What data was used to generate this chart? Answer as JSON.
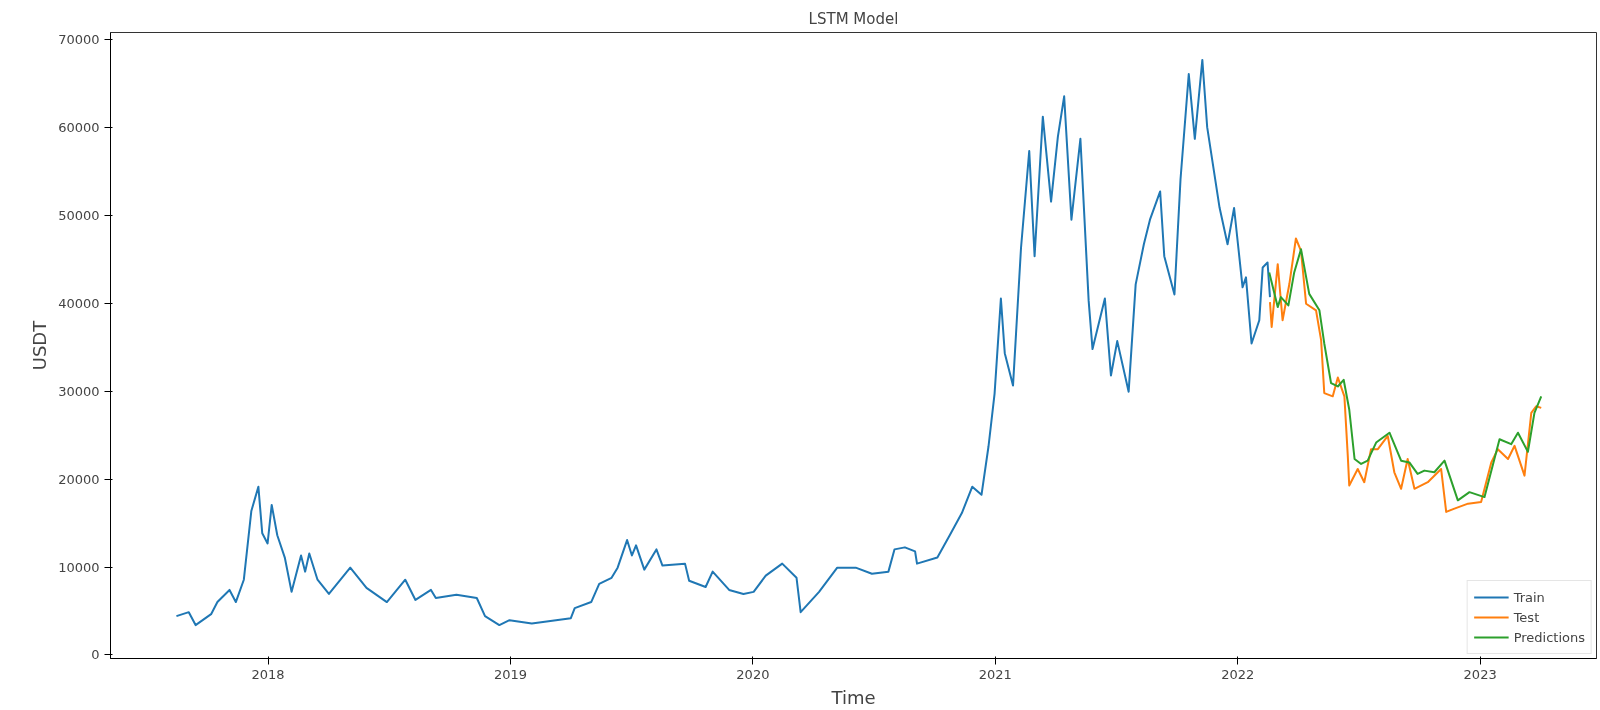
{
  "chart_data": {
    "type": "line",
    "title": "LSTM Model",
    "xlabel": "Time",
    "ylabel": "USDT",
    "xlim": [
      2017.35,
      2023.48
    ],
    "ylim": [
      -400,
      70800
    ],
    "xticks": [
      2018,
      2019,
      2020,
      2021,
      2022,
      2023
    ],
    "yticks": [
      0,
      10000,
      20000,
      30000,
      40000,
      50000,
      60000,
      70000
    ],
    "grid": false,
    "legend": "bottom right",
    "line_style": "solid",
    "marker": "none",
    "series": [
      {
        "name": "Train",
        "color": "#1f77b4",
        "x": [
          2017.622,
          2017.673,
          2017.701,
          2017.765,
          2017.791,
          2017.841,
          2017.867,
          2017.9,
          2017.931,
          2017.96,
          2017.976,
          2017.998,
          2018.015,
          2018.038,
          2018.069,
          2018.097,
          2018.136,
          2018.153,
          2018.17,
          2018.204,
          2018.251,
          2018.339,
          2018.406,
          2018.49,
          2018.566,
          2018.608,
          2018.672,
          2018.692,
          2018.777,
          2018.861,
          2018.895,
          2018.954,
          2018.996,
          2019.088,
          2019.249,
          2019.265,
          2019.333,
          2019.366,
          2019.417,
          2019.442,
          2019.481,
          2019.501,
          2019.518,
          2019.552,
          2019.602,
          2019.627,
          2019.72,
          2019.737,
          2019.805,
          2019.834,
          2019.902,
          2019.961,
          2020.003,
          2020.053,
          2020.121,
          2020.18,
          2020.197,
          2020.273,
          2020.348,
          2020.424,
          2020.491,
          2020.559,
          2020.584,
          2020.627,
          2020.669,
          2020.677,
          2020.761,
          2020.812,
          2020.862,
          2020.905,
          2020.943,
          2020.972,
          2020.997,
          2021.023,
          2021.039,
          2021.073,
          2021.106,
          2021.14,
          2021.162,
          2021.196,
          2021.23,
          2021.258,
          2021.284,
          2021.314,
          2021.351,
          2021.385,
          2021.401,
          2021.452,
          2021.477,
          2021.503,
          2021.55,
          2021.579,
          2021.613,
          2021.638,
          2021.68,
          2021.697,
          2021.739,
          2021.764,
          2021.798,
          2021.823,
          2021.854,
          2021.874,
          2021.925,
          2021.958,
          2021.985,
          2022.02,
          2022.034,
          2022.057,
          2022.089,
          2022.103,
          2022.123,
          2022.133
        ],
        "values": [
          4420,
          4870,
          3400,
          4640,
          6020,
          7400,
          6020,
          8560,
          16380,
          19140,
          13840,
          12690,
          17070,
          13620,
          11080,
          7180,
          11320,
          9480,
          11540,
          8560,
          6940,
          9930,
          7630,
          6020,
          8560,
          6260,
          7400,
          6480,
          6850,
          6480,
          4420,
          3400,
          3960,
          3590,
          4180,
          5330,
          6020,
          8090,
          8780,
          9930,
          13070,
          11320,
          12470,
          9710,
          12010,
          10170,
          10390,
          8440,
          7730,
          9480,
          7400,
          6940,
          7180,
          9020,
          10390,
          8780,
          4870,
          7180,
          9930,
          9930,
          9240,
          9480,
          12010,
          12240,
          11780,
          10390,
          11080,
          13620,
          16140,
          19140,
          18220,
          23740,
          29730,
          40540,
          34330,
          30640,
          46290,
          57330,
          45360,
          61230,
          51570,
          58930,
          63540,
          49510,
          58710,
          40300,
          34790,
          40540,
          31790,
          35700,
          29950,
          42150,
          46750,
          49510,
          52720,
          45360,
          41000,
          54110,
          66070,
          58710,
          67680,
          60030,
          50890,
          46710,
          50840,
          41820,
          42950,
          35430,
          38070,
          44080,
          44640,
          40700
        ]
      },
      {
        "name": "Test",
        "color": "#ff7f0e",
        "x": [
          2022.133,
          2022.14,
          2022.165,
          2022.185,
          2022.213,
          2022.24,
          2022.261,
          2022.282,
          2022.323,
          2022.344,
          2022.357,
          2022.392,
          2022.413,
          2022.44,
          2022.454,
          2022.46,
          2022.495,
          2022.522,
          2022.55,
          2022.578,
          2022.619,
          2022.646,
          2022.674,
          2022.701,
          2022.729,
          2022.784,
          2022.839,
          2022.86,
          2022.894,
          2022.95,
          2023.004,
          2023.046,
          2023.073,
          2023.115,
          2023.142,
          2023.183,
          2023.211,
          2023.231,
          2023.252
        ],
        "values": [
          40130,
          37310,
          44450,
          38070,
          42190,
          47370,
          45960,
          39950,
          39200,
          35810,
          29790,
          29420,
          31560,
          29420,
          22650,
          19280,
          21160,
          19650,
          23410,
          23410,
          24910,
          20780,
          18900,
          22290,
          18900,
          19650,
          21160,
          16270,
          16650,
          17210,
          17390,
          21900,
          23410,
          22290,
          23790,
          20400,
          27540,
          28290,
          28100
        ]
      },
      {
        "name": "Predictions",
        "color": "#2ca02c",
        "x": [
          2022.13,
          2022.165,
          2022.178,
          2022.209,
          2022.233,
          2022.261,
          2022.295,
          2022.337,
          2022.357,
          2022.385,
          2022.413,
          2022.437,
          2022.46,
          2022.482,
          2022.509,
          2022.536,
          2022.571,
          2022.626,
          2022.674,
          2022.708,
          2022.742,
          2022.77,
          2022.811,
          2022.853,
          2022.908,
          2022.956,
          2023.018,
          2023.08,
          2023.128,
          2023.156,
          2023.197,
          2023.224,
          2023.252
        ],
        "values": [
          43510,
          39570,
          40700,
          39760,
          43510,
          46150,
          41070,
          39200,
          35430,
          30920,
          30540,
          31300,
          27920,
          22290,
          21730,
          22100,
          24160,
          25280,
          22100,
          21900,
          20590,
          20970,
          20780,
          22100,
          17590,
          18520,
          17960,
          24540,
          23980,
          25280,
          23110,
          27540,
          29420
        ]
      }
    ]
  }
}
